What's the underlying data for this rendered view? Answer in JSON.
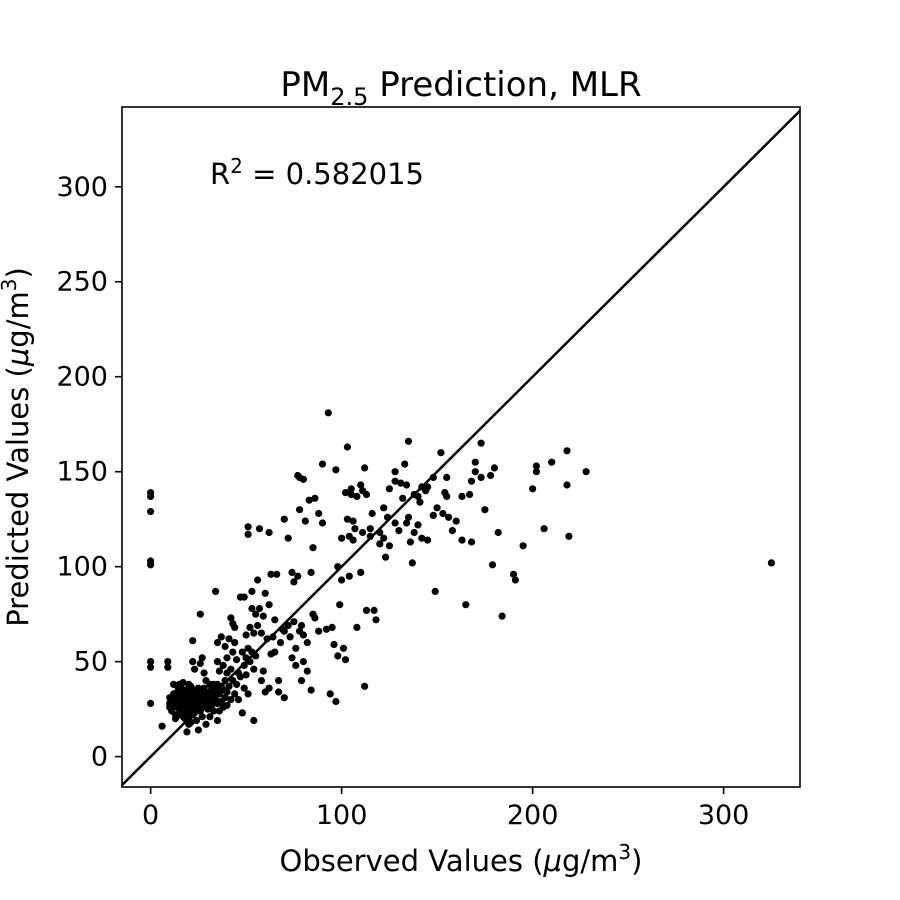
{
  "chart_data": {
    "type": "scatter",
    "title": {
      "pre": "PM",
      "sub": "2.5",
      "post": " Prediction, MLR"
    },
    "xlabel": {
      "pre": "Observed Values (",
      "mu": "μ",
      "mid": "g/m",
      "sup": "3",
      "post": ")"
    },
    "ylabel": {
      "pre": "Predicted Values (",
      "mu": "μ",
      "mid": "g/m",
      "sup": "3",
      "post": ")"
    },
    "annotation": {
      "pre": "R",
      "sup": "2",
      "post": " = 0.582015"
    },
    "xlim": [
      -15,
      340
    ],
    "ylim": [
      -16,
      342
    ],
    "xticks": [
      0,
      100,
      200,
      300
    ],
    "yticks": [
      0,
      50,
      100,
      150,
      200,
      250,
      300
    ],
    "grid": false,
    "reference_line": "y = x",
    "points": [
      [
        0,
        139
      ],
      [
        0,
        137
      ],
      [
        0,
        129
      ],
      [
        0,
        103
      ],
      [
        0,
        101
      ],
      [
        0,
        50
      ],
      [
        0,
        47
      ],
      [
        0,
        28
      ],
      [
        6,
        16
      ],
      [
        9,
        50
      ],
      [
        9,
        47
      ],
      [
        10,
        31
      ],
      [
        10,
        28
      ],
      [
        10,
        26
      ],
      [
        11,
        24
      ],
      [
        12,
        38
      ],
      [
        12,
        33
      ],
      [
        12,
        30
      ],
      [
        12,
        27
      ],
      [
        13,
        22
      ],
      [
        13,
        20
      ],
      [
        14,
        37
      ],
      [
        14,
        34
      ],
      [
        14,
        31
      ],
      [
        14,
        26
      ],
      [
        15,
        38
      ],
      [
        15,
        33
      ],
      [
        15,
        29
      ],
      [
        15,
        25
      ],
      [
        15,
        22
      ],
      [
        16,
        36
      ],
      [
        16,
        31
      ],
      [
        16,
        28
      ],
      [
        16,
        23
      ],
      [
        17,
        39
      ],
      [
        17,
        34
      ],
      [
        17,
        30
      ],
      [
        17,
        26
      ],
      [
        17,
        21
      ],
      [
        18,
        35
      ],
      [
        18,
        32
      ],
      [
        18,
        28
      ],
      [
        18,
        24
      ],
      [
        18,
        20
      ],
      [
        19,
        30
      ],
      [
        19,
        27
      ],
      [
        19,
        23
      ],
      [
        19,
        13
      ],
      [
        20,
        38
      ],
      [
        20,
        34
      ],
      [
        20,
        29
      ],
      [
        20,
        25
      ],
      [
        20,
        20
      ],
      [
        20,
        17
      ],
      [
        21,
        37
      ],
      [
        21,
        33
      ],
      [
        21,
        28
      ],
      [
        21,
        24
      ],
      [
        21,
        18
      ],
      [
        22,
        61
      ],
      [
        22,
        50
      ],
      [
        22,
        30
      ],
      [
        22,
        26
      ],
      [
        22,
        22
      ],
      [
        23,
        46
      ],
      [
        23,
        35
      ],
      [
        23,
        31
      ],
      [
        23,
        27
      ],
      [
        23,
        23
      ],
      [
        24,
        33
      ],
      [
        24,
        29
      ],
      [
        24,
        25
      ],
      [
        24,
        19
      ],
      [
        25,
        36
      ],
      [
        25,
        32
      ],
      [
        25,
        27
      ],
      [
        25,
        14
      ],
      [
        26,
        75
      ],
      [
        26,
        49
      ],
      [
        26,
        35
      ],
      [
        26,
        30
      ],
      [
        26,
        24
      ],
      [
        27,
        52
      ],
      [
        27,
        33
      ],
      [
        27,
        28
      ],
      [
        27,
        21
      ],
      [
        28,
        44
      ],
      [
        28,
        36
      ],
      [
        28,
        31
      ],
      [
        28,
        26
      ],
      [
        29,
        40
      ],
      [
        29,
        33
      ],
      [
        29,
        28
      ],
      [
        29,
        17
      ],
      [
        30,
        30
      ],
      [
        30,
        25
      ],
      [
        31,
        38
      ],
      [
        31,
        34
      ],
      [
        31,
        29
      ],
      [
        31,
        21
      ],
      [
        32,
        36
      ],
      [
        32,
        31
      ],
      [
        32,
        27
      ],
      [
        33,
        38
      ],
      [
        33,
        33
      ],
      [
        33,
        24
      ],
      [
        34,
        87
      ],
      [
        34,
        35
      ],
      [
        34,
        30
      ],
      [
        35,
        60
      ],
      [
        35,
        50
      ],
      [
        35,
        38
      ],
      [
        35,
        28
      ],
      [
        35,
        19
      ],
      [
        36,
        45
      ],
      [
        36,
        33
      ],
      [
        36,
        24
      ],
      [
        37,
        63
      ],
      [
        37,
        37
      ],
      [
        37,
        29
      ],
      [
        38,
        48
      ],
      [
        38,
        35
      ],
      [
        38,
        26
      ],
      [
        39,
        58
      ],
      [
        39,
        40
      ],
      [
        39,
        31
      ],
      [
        40,
        52
      ],
      [
        40,
        44
      ],
      [
        40,
        34
      ],
      [
        40,
        27
      ],
      [
        41,
        62
      ],
      [
        41,
        37
      ],
      [
        42,
        73
      ],
      [
        42,
        46
      ],
      [
        42,
        30
      ],
      [
        43,
        70
      ],
      [
        43,
        55
      ],
      [
        43,
        40
      ],
      [
        44,
        68
      ],
      [
        44,
        60
      ],
      [
        44,
        33
      ],
      [
        45,
        51
      ],
      [
        45,
        38
      ],
      [
        46,
        44
      ],
      [
        46,
        30
      ],
      [
        47,
        84
      ],
      [
        47,
        42
      ],
      [
        48,
        55
      ],
      [
        48,
        23
      ],
      [
        49,
        84
      ],
      [
        49,
        48
      ],
      [
        49,
        36
      ],
      [
        50,
        64
      ],
      [
        50,
        52
      ],
      [
        50,
        43
      ],
      [
        51,
        121
      ],
      [
        51,
        117
      ],
      [
        51,
        57
      ],
      [
        51,
        33
      ],
      [
        52,
        68
      ],
      [
        52,
        50
      ],
      [
        53,
        87
      ],
      [
        53,
        78
      ],
      [
        53,
        55
      ],
      [
        54,
        65
      ],
      [
        54,
        46
      ],
      [
        54,
        19
      ],
      [
        55,
        75
      ],
      [
        55,
        53
      ],
      [
        56,
        93
      ],
      [
        56,
        69
      ],
      [
        57,
        120
      ],
      [
        57,
        78
      ],
      [
        58,
        65
      ],
      [
        58,
        40
      ],
      [
        59,
        74
      ],
      [
        59,
        45
      ],
      [
        60,
        86
      ],
      [
        60,
        34
      ],
      [
        61,
        62
      ],
      [
        62,
        118
      ],
      [
        62,
        80
      ],
      [
        62,
        36
      ],
      [
        63,
        96
      ],
      [
        63,
        54
      ],
      [
        64,
        63
      ],
      [
        65,
        72
      ],
      [
        65,
        55
      ],
      [
        66,
        96
      ],
      [
        67,
        40
      ],
      [
        67,
        34
      ],
      [
        68,
        60
      ],
      [
        69,
        67
      ],
      [
        70,
        125
      ],
      [
        70,
        66
      ],
      [
        70,
        31
      ],
      [
        72,
        115
      ],
      [
        72,
        69
      ],
      [
        73,
        63
      ],
      [
        74,
        97
      ],
      [
        74,
        52
      ],
      [
        75,
        92
      ],
      [
        75,
        71
      ],
      [
        76,
        57
      ],
      [
        76,
        48
      ],
      [
        77,
        148
      ],
      [
        77,
        95
      ],
      [
        78,
        147
      ],
      [
        78,
        130
      ],
      [
        78,
        66
      ],
      [
        79,
        69
      ],
      [
        79,
        40
      ],
      [
        80,
        146
      ],
      [
        80,
        64
      ],
      [
        80,
        50
      ],
      [
        81,
        124
      ],
      [
        82,
        60
      ],
      [
        82,
        45
      ],
      [
        83,
        135
      ],
      [
        84,
        97
      ],
      [
        84,
        35
      ],
      [
        85,
        110
      ],
      [
        85,
        75
      ],
      [
        86,
        73
      ],
      [
        86,
        136
      ],
      [
        88,
        128
      ],
      [
        88,
        66
      ],
      [
        90,
        154
      ],
      [
        90,
        123
      ],
      [
        92,
        67
      ],
      [
        93,
        181
      ],
      [
        94,
        33
      ],
      [
        95,
        68
      ],
      [
        96,
        59
      ],
      [
        97,
        29
      ],
      [
        97,
        151
      ],
      [
        98,
        100
      ],
      [
        98,
        53
      ],
      [
        99,
        80
      ],
      [
        100,
        93
      ],
      [
        100,
        115
      ],
      [
        101,
        57
      ],
      [
        102,
        139
      ],
      [
        102,
        51
      ],
      [
        103,
        125
      ],
      [
        103,
        163
      ],
      [
        104,
        95
      ],
      [
        104,
        116
      ],
      [
        105,
        141
      ],
      [
        105,
        138
      ],
      [
        106,
        124
      ],
      [
        106,
        114
      ],
      [
        107,
        120
      ],
      [
        108,
        68
      ],
      [
        108,
        137
      ],
      [
        110,
        143
      ],
      [
        110,
        97
      ],
      [
        111,
        140
      ],
      [
        111,
        118
      ],
      [
        112,
        37
      ],
      [
        112,
        152
      ],
      [
        113,
        138
      ],
      [
        113,
        77
      ],
      [
        115,
        120
      ],
      [
        115,
        116
      ],
      [
        116,
        128
      ],
      [
        117,
        77
      ],
      [
        118,
        72
      ],
      [
        120,
        118
      ],
      [
        120,
        112
      ],
      [
        122,
        131
      ],
      [
        122,
        115
      ],
      [
        123,
        105
      ],
      [
        124,
        126
      ],
      [
        125,
        141
      ],
      [
        125,
        111
      ],
      [
        128,
        145
      ],
      [
        128,
        123
      ],
      [
        128,
        150
      ],
      [
        130,
        119
      ],
      [
        131,
        144
      ],
      [
        132,
        136
      ],
      [
        133,
        154
      ],
      [
        134,
        143
      ],
      [
        134,
        123
      ],
      [
        135,
        166
      ],
      [
        135,
        126
      ],
      [
        136,
        113
      ],
      [
        137,
        102
      ],
      [
        138,
        138
      ],
      [
        138,
        118
      ],
      [
        140,
        137
      ],
      [
        140,
        122
      ],
      [
        141,
        134
      ],
      [
        142,
        142
      ],
      [
        142,
        115
      ],
      [
        144,
        140
      ],
      [
        145,
        114
      ],
      [
        145,
        142
      ],
      [
        148,
        127
      ],
      [
        148,
        147
      ],
      [
        149,
        87
      ],
      [
        150,
        131
      ],
      [
        152,
        160
      ],
      [
        153,
        128
      ],
      [
        154,
        139
      ],
      [
        155,
        137
      ],
      [
        155,
        147
      ],
      [
        156,
        126
      ],
      [
        158,
        119
      ],
      [
        160,
        124
      ],
      [
        163,
        137
      ],
      [
        163,
        114
      ],
      [
        165,
        80
      ],
      [
        167,
        138
      ],
      [
        168,
        145
      ],
      [
        168,
        113
      ],
      [
        170,
        150
      ],
      [
        170,
        155
      ],
      [
        173,
        165
      ],
      [
        173,
        147
      ],
      [
        175,
        130
      ],
      [
        178,
        148
      ],
      [
        179,
        101
      ],
      [
        180,
        152
      ],
      [
        182,
        118
      ],
      [
        184,
        74
      ],
      [
        190,
        96
      ],
      [
        191,
        93
      ],
      [
        195,
        111
      ],
      [
        200,
        141
      ],
      [
        202,
        153
      ],
      [
        202,
        150
      ],
      [
        206,
        120
      ],
      [
        210,
        155
      ],
      [
        218,
        161
      ],
      [
        218,
        143
      ],
      [
        219,
        116
      ],
      [
        228,
        150
      ],
      [
        325,
        102
      ]
    ]
  }
}
